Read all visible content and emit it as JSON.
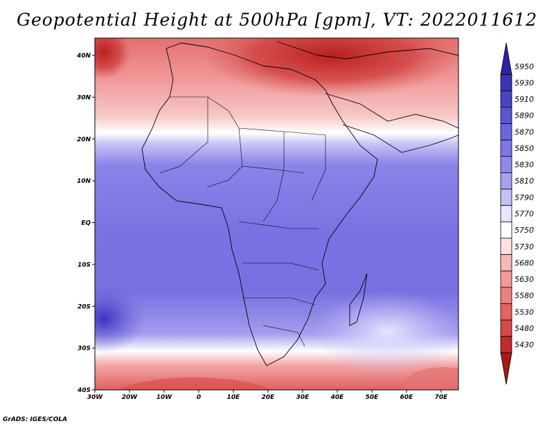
{
  "title": "Geopotential Height at 500hPa [gpm], VT: 2022011612",
  "credit": "GrADS: IGES/COLA",
  "lat_labels": [
    "40N",
    "30N",
    "20N",
    "10N",
    "EQ",
    "10S",
    "20S",
    "30S",
    "40S"
  ],
  "lon_labels": [
    "30W",
    "20W",
    "10W",
    "0",
    "10E",
    "20E",
    "30E",
    "40E",
    "50E",
    "60E",
    "70E"
  ],
  "colorbar": {
    "levels": [
      "5950",
      "5930",
      "5910",
      "5890",
      "5870",
      "5850",
      "5830",
      "5810",
      "5790",
      "5770",
      "5750",
      "5730",
      "5680",
      "5630",
      "5580",
      "5530",
      "5480",
      "5430"
    ],
    "colors": [
      "#3020a8",
      "#3a34b8",
      "#4646c4",
      "#5a56d2",
      "#6c66dc",
      "#7d76e4",
      "#9088ea",
      "#a8a0f0",
      "#c4c0f8",
      "#e6e6ff",
      "#ffffff",
      "#ffe0e0",
      "#f8b8b8",
      "#f29a9a",
      "#ec8080",
      "#e46262",
      "#d84848",
      "#c02c2c",
      "#a81818"
    ]
  },
  "map_fields": {
    "regions": [
      "north_africa_high_band",
      "tropical_belt",
      "southern_ocean_low_band"
    ]
  }
}
